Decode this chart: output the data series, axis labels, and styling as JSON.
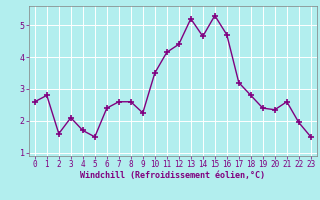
{
  "x": [
    0,
    1,
    2,
    3,
    4,
    5,
    6,
    7,
    8,
    9,
    10,
    11,
    12,
    13,
    14,
    15,
    16,
    17,
    18,
    19,
    20,
    21,
    22,
    23
  ],
  "y": [
    2.6,
    2.8,
    1.6,
    2.1,
    1.7,
    1.5,
    2.4,
    2.6,
    2.6,
    2.25,
    3.5,
    4.15,
    4.4,
    5.2,
    4.65,
    5.3,
    4.7,
    3.2,
    2.8,
    2.4,
    2.35,
    2.6,
    1.95,
    1.5
  ],
  "line_color": "#800080",
  "marker": "+",
  "marker_size": 4,
  "bg_color": "#b2eeee",
  "grid_color": "#ffffff",
  "xlabel": "Windchill (Refroidissement éolien,°C)",
  "xlabel_color": "#800080",
  "tick_color": "#800080",
  "ylim": [
    0.9,
    5.6
  ],
  "xlim": [
    -0.5,
    23.5
  ],
  "yticks": [
    1,
    2,
    3,
    4,
    5
  ],
  "xticks": [
    0,
    1,
    2,
    3,
    4,
    5,
    6,
    7,
    8,
    9,
    10,
    11,
    12,
    13,
    14,
    15,
    16,
    17,
    18,
    19,
    20,
    21,
    22,
    23
  ],
  "spine_color": "#808080",
  "line_width": 1.0,
  "tick_fontsize": 5.5,
  "xlabel_fontsize": 6.0
}
